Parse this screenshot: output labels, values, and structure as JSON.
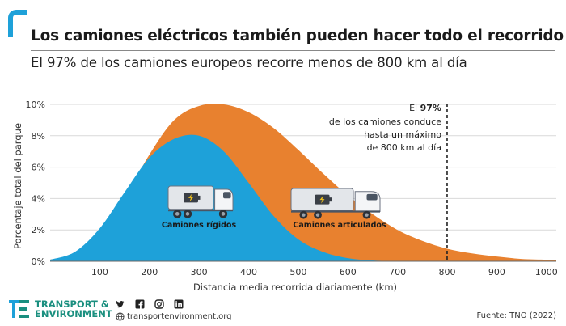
{
  "header": {
    "title": "Los camiones eléctricos también pueden hacer todo el recorrido",
    "subtitle": "El 97% de los camiones europeos recorre menos de 800 km al día"
  },
  "chart_data": {
    "type": "area",
    "xlabel": "Distancia media recorrida diariamente (km)",
    "ylabel": "Porcentaje total del parque",
    "xlim": [
      0,
      1020
    ],
    "ylim": [
      0,
      10
    ],
    "x_ticks": [
      "100",
      "200",
      "300",
      "400",
      "500",
      "600",
      "700",
      "800",
      "900",
      "1000"
    ],
    "y_ticks": [
      "0%",
      "2%",
      "4%",
      "6%",
      "8%",
      "10%"
    ],
    "series": [
      {
        "name": "Camiones articulados",
        "color": "#e8812f",
        "x": [
          0,
          50,
          100,
          150,
          200,
          250,
          300,
          350,
          400,
          450,
          500,
          550,
          600,
          650,
          700,
          750,
          800,
          850,
          900,
          950,
          1000,
          1020
        ],
        "y": [
          0.1,
          0.5,
          1.7,
          4.0,
          6.8,
          9.0,
          9.9,
          10.0,
          9.5,
          8.5,
          7.1,
          5.6,
          4.2,
          3.0,
          2.0,
          1.3,
          0.8,
          0.5,
          0.3,
          0.15,
          0.1,
          0.05
        ]
      },
      {
        "name": "Camiones rígidos",
        "color": "#1ea1d9",
        "x": [
          0,
          50,
          100,
          150,
          200,
          250,
          300,
          350,
          400,
          450,
          500,
          550,
          600,
          650,
          700
        ],
        "y": [
          0.1,
          0.6,
          2.1,
          4.4,
          6.6,
          7.8,
          8.0,
          7.0,
          5.0,
          2.9,
          1.4,
          0.6,
          0.2,
          0.05,
          0
        ]
      }
    ],
    "reference_line": {
      "x": 800,
      "style": "dashed",
      "label_pre": "El ",
      "label_bold": "97%",
      "label_lines": [
        "de los camiones conduce",
        "hasta un máximo",
        "de 800 km al día"
      ]
    },
    "series_labels": {
      "rigid": "Camiones rígidos",
      "articulated": "Camiones articulados"
    },
    "icon": "electric-truck-battery-icon"
  },
  "footer": {
    "org_line1": "TRANSPORT &",
    "org_line2": "ENVIRONMENT",
    "website": "transportenvironment.org",
    "source": "Fuente: TNO (2022)",
    "social_icons": [
      "twitter-icon",
      "facebook-icon",
      "instagram-icon",
      "linkedin-icon"
    ]
  },
  "colors": {
    "rigid": "#1ea1d9",
    "articulated": "#e8812f",
    "brand": "#1a8f7f",
    "accent": "#1ea1d9"
  }
}
